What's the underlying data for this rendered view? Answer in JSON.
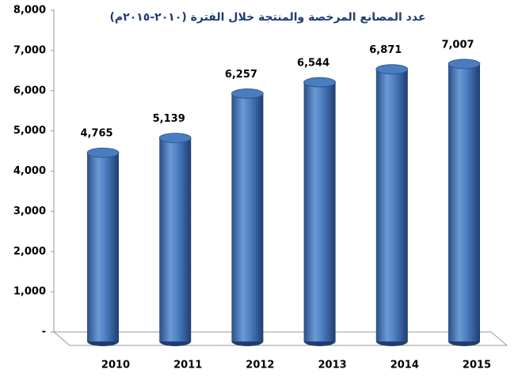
{
  "chart_data": {
    "type": "bar",
    "title": "عدد المصانع المرخصة والمنتجة خلال الفترة (٢٠١٠-٢٠١٥م)",
    "categories": [
      "2010",
      "2011",
      "2012",
      "2013",
      "2014",
      "2015"
    ],
    "values": [
      4765,
      5139,
      6257,
      6544,
      6871,
      7007
    ],
    "value_labels": [
      "4,765",
      "5,139",
      "6,257",
      "6,544",
      "6,871",
      "7,007"
    ],
    "color": "#4a7cc0",
    "ylim": [
      0,
      8000
    ],
    "yticks": [
      {
        "value": 0,
        "label": "-"
      },
      {
        "value": 1000,
        "label": "1,000"
      },
      {
        "value": 2000,
        "label": "2,000"
      },
      {
        "value": 3000,
        "label": "3,000"
      },
      {
        "value": 4000,
        "label": "4,000"
      },
      {
        "value": 5000,
        "label": "5,000"
      },
      {
        "value": 6000,
        "label": "6,000"
      },
      {
        "value": 7000,
        "label": "7,000"
      },
      {
        "value": 8000,
        "label": "8,000"
      }
    ]
  }
}
